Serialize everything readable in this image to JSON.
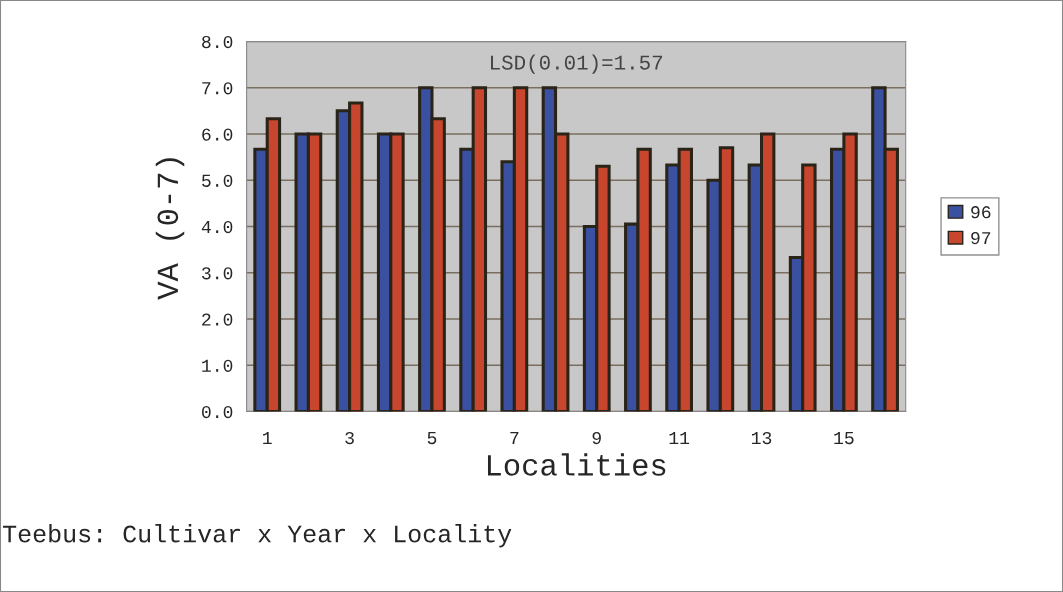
{
  "chart_data": {
    "type": "bar",
    "xlabel": "Localities",
    "ylabel": "VA (0-7)",
    "categories": [
      "1",
      null,
      "3",
      null,
      "5",
      null,
      "7",
      null,
      "9",
      null,
      "11",
      null,
      "13",
      null,
      "15",
      null
    ],
    "series": [
      {
        "name": "96",
        "color": "#3a50a0",
        "values": [
          5.67,
          6.0,
          6.5,
          6.0,
          7.0,
          5.67,
          5.4,
          7.0,
          4.0,
          4.05,
          5.33,
          5.0,
          5.33,
          3.33,
          5.67,
          7.0
        ]
      },
      {
        "name": "97",
        "color": "#c8452e",
        "values": [
          6.33,
          6.0,
          6.67,
          6.0,
          6.33,
          7.0,
          7.0,
          6.0,
          5.3,
          5.67,
          5.67,
          5.7,
          6.0,
          5.33,
          6.0,
          5.67
        ]
      }
    ],
    "ylim": [
      0,
      8
    ],
    "yticks": [
      {
        "value": 0,
        "label": "0.0"
      },
      {
        "value": 1,
        "label": "1.0"
      },
      {
        "value": 2,
        "label": "2.0"
      },
      {
        "value": 3,
        "label": "3.0"
      },
      {
        "value": 4,
        "label": "4.0"
      },
      {
        "value": 5,
        "label": "5.0"
      },
      {
        "value": 6,
        "label": "6.0"
      },
      {
        "value": 7,
        "label": "7.0"
      },
      {
        "value": 8,
        "label": "8.0"
      }
    ],
    "grid": "y",
    "legend": "right",
    "annotations": [
      "LSD(0.01)=1.57",
      "Teebus: Cultivar x Year x Locality"
    ]
  }
}
